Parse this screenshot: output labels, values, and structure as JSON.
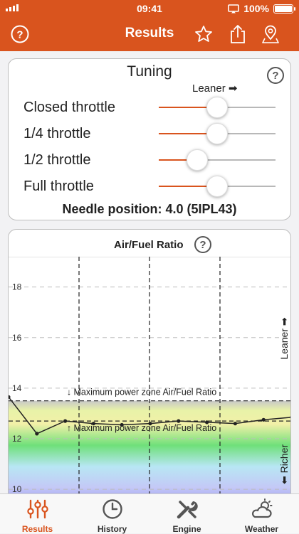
{
  "status_bar": {
    "time": "09:41",
    "battery": "100%"
  },
  "nav": {
    "title": "Results"
  },
  "tuning": {
    "title": "Tuning",
    "leaner_label": "Leaner ➡",
    "rows": [
      {
        "label": "Closed throttle",
        "value": 0.5
      },
      {
        "label": "1/4 throttle",
        "value": 0.5
      },
      {
        "label": "1/2 throttle",
        "value": 0.33
      },
      {
        "label": "Full throttle",
        "value": 0.5
      }
    ],
    "needle_text": "Needle position: 4.0 (5IPL43)"
  },
  "colors": {
    "accent": "#d9541e"
  },
  "chart_data": {
    "type": "line",
    "title": "Air/Fuel Ratio",
    "ylim": [
      9.3,
      19.2
    ],
    "yticks": [
      "18",
      "16",
      "14",
      "12",
      "10"
    ],
    "x": [
      0,
      1,
      2,
      3,
      4,
      5,
      6,
      7,
      8,
      9,
      10
    ],
    "values": [
      13.65,
      12.2,
      12.7,
      12.6,
      12.55,
      12.6,
      12.7,
      12.65,
      12.6,
      12.75,
      12.85
    ],
    "reference_lines": [
      {
        "label": "↓ Maximum power zone Air/Fuel Ratio",
        "value": 13.5
      },
      {
        "label": "↑ Maximum power zone Air/Fuel Ratio",
        "value": 12.7
      }
    ],
    "right_label_top": "Leaner ➡",
    "right_label_bottom": "⬅ Richer",
    "grid": true
  },
  "tabs": [
    {
      "label": "Results",
      "icon": "sliders-icon",
      "active": true
    },
    {
      "label": "History",
      "icon": "clock-icon",
      "active": false
    },
    {
      "label": "Engine",
      "icon": "wrench-icon",
      "active": false
    },
    {
      "label": "Weather",
      "icon": "cloud-sun-icon",
      "active": false
    }
  ]
}
